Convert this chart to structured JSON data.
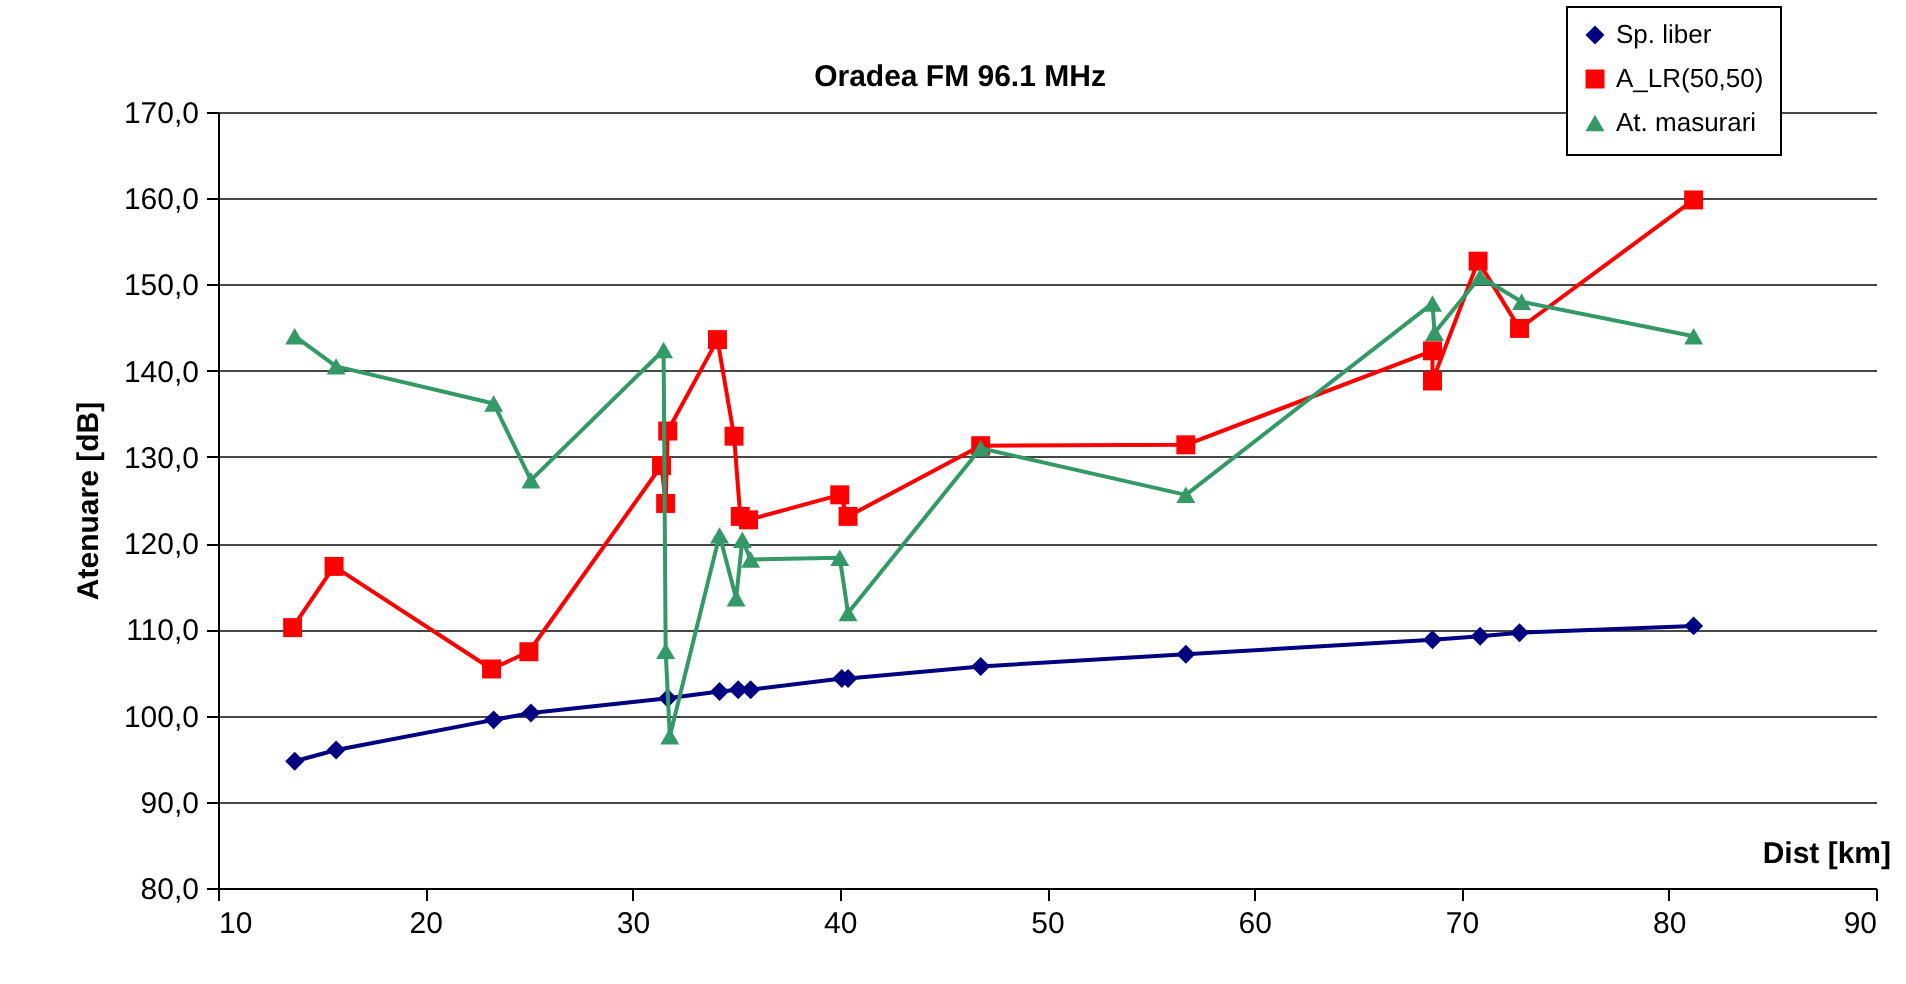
{
  "chart_data": {
    "type": "line",
    "title": "Oradea FM 96.1 MHz",
    "xlabel": "Dist [km]",
    "ylabel": "Atenuare [dB]",
    "xlim": [
      10,
      90
    ],
    "xticks": [
      10,
      20,
      30,
      40,
      50,
      60,
      70,
      80,
      90
    ],
    "ylim": [
      80,
      170
    ],
    "yticks": [
      {
        "value": 80,
        "label": "80,0"
      },
      {
        "value": 90,
        "label": "90,0"
      },
      {
        "value": 100,
        "label": "100,0"
      },
      {
        "value": 110,
        "label": "110,0"
      },
      {
        "value": 120,
        "label": "120,0"
      },
      {
        "value": 130,
        "label": "130,0"
      },
      {
        "value": 140,
        "label": "140,0"
      },
      {
        "value": 150,
        "label": "150,0"
      },
      {
        "value": 160,
        "label": "160,0"
      },
      {
        "value": 170,
        "label": "170,0"
      }
    ],
    "grid": "y",
    "legend": "top right",
    "line_style": "solid",
    "series": [
      {
        "name": "Sp. liber",
        "color": "#000080",
        "marker": "diamond",
        "x": [
          13.7,
          15.7,
          23.3,
          25.1,
          31.7,
          34.2,
          35.1,
          35.7,
          40.1,
          40.4,
          46.8,
          56.7,
          68.6,
          70.9,
          72.8,
          81.2
        ],
        "values": [
          94.7,
          96.0,
          99.5,
          100.3,
          102.0,
          102.8,
          103.0,
          103.0,
          104.3,
          104.3,
          105.7,
          107.1,
          108.8,
          109.2,
          109.6,
          110.4
        ]
      },
      {
        "name": "A_LR(50,50)",
        "color": "#ff0000",
        "marker": "square",
        "x": [
          13.6,
          15.6,
          23.2,
          25.0,
          31.4,
          31.6,
          31.7,
          34.1,
          34.9,
          35.2,
          35.6,
          40.0,
          40.4,
          46.8,
          56.7,
          68.6,
          68.6,
          70.8,
          72.8,
          81.2
        ],
        "values": [
          110.2,
          117.3,
          105.4,
          107.4,
          129.0,
          124.6,
          133.0,
          143.6,
          132.4,
          123.1,
          122.7,
          125.6,
          123.1,
          131.3,
          131.4,
          142.3,
          138.8,
          152.7,
          144.9,
          159.8
        ]
      },
      {
        "name": "At. masurari",
        "color": "#339966",
        "marker": "triangle",
        "x": [
          13.7,
          15.7,
          23.3,
          25.1,
          31.5,
          31.6,
          31.8,
          34.2,
          35.0,
          35.3,
          35.7,
          40.0,
          40.4,
          46.8,
          56.7,
          68.6,
          68.7,
          70.9,
          72.9,
          81.2
        ],
        "values": [
          144.0,
          140.5,
          136.2,
          127.3,
          142.4,
          107.5,
          97.6,
          120.9,
          113.6,
          120.4,
          118.1,
          118.3,
          111.9,
          131.0,
          125.6,
          147.8,
          144.4,
          150.9,
          148.0,
          144.0
        ]
      }
    ]
  }
}
